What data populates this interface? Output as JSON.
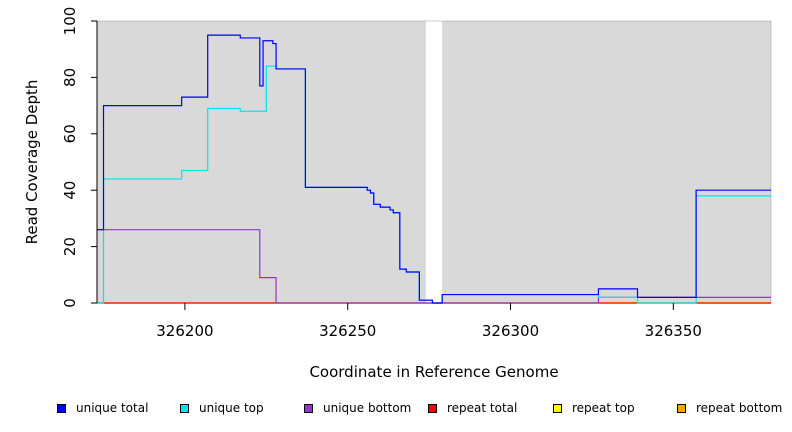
{
  "chart_data": {
    "type": "line",
    "step": true,
    "xlabel": "Coordinate in Reference Genome",
    "ylabel": "Read Coverage Depth",
    "xlim": [
      326173,
      326380
    ],
    "ylim": [
      0,
      100
    ],
    "xticks": [
      326200,
      326250,
      326300,
      326350
    ],
    "yticks": [
      0,
      20,
      40,
      60,
      80,
      100
    ],
    "grid": false,
    "background_color": "#d9d9d9",
    "gap_region": [
      326274,
      326279
    ],
    "legend_position": "bottom",
    "series": [
      {
        "name": "unique total",
        "color": "#0000ff",
        "x": [
          326173,
          326174,
          326175,
          326199,
          326207,
          326217,
          326223,
          326224,
          326227,
          326228,
          326237,
          326256,
          326257,
          326258,
          326259,
          326260,
          326263,
          326264,
          326265,
          326266,
          326267,
          326268,
          326270,
          326272,
          326274,
          326276,
          326279,
          326280,
          326327,
          326339,
          326356,
          326357,
          326380
        ],
        "y": [
          26,
          26,
          70,
          73,
          95,
          94,
          77,
          93,
          92,
          83,
          41,
          40,
          39,
          35,
          35,
          34,
          33,
          32,
          32,
          12,
          12,
          11,
          11,
          1,
          1,
          0,
          3,
          3,
          5,
          2,
          2,
          40,
          40
        ]
      },
      {
        "name": "unique top",
        "color": "#00e5ee",
        "x": [
          326173,
          326174,
          326175,
          326199,
          326207,
          326217,
          326223,
          326225,
          326228,
          326237,
          326256,
          326257,
          326258,
          326259,
          326260,
          326263,
          326264,
          326265,
          326266,
          326267,
          326268,
          326270,
          326272,
          326274,
          326276,
          326279,
          326280,
          326327,
          326339,
          326356,
          326357,
          326380
        ],
        "y": [
          0,
          0,
          44,
          47,
          69,
          68,
          68,
          84,
          83,
          41,
          40,
          39,
          35,
          35,
          34,
          33,
          32,
          32,
          12,
          12,
          11,
          11,
          1,
          1,
          0,
          3,
          3,
          2,
          0,
          0,
          38,
          38
        ]
      },
      {
        "name": "unique bottom",
        "color": "#9932cc",
        "x": [
          326173,
          326223,
          326228,
          326327,
          326380
        ],
        "y": [
          26,
          9,
          0,
          2,
          2
        ]
      },
      {
        "name": "repeat total",
        "color": "#ff0000",
        "x": [
          326173,
          326380
        ],
        "y": [
          0,
          0
        ]
      },
      {
        "name": "repeat top",
        "color": "#ffff00",
        "x": [
          326173,
          326380
        ],
        "y": [
          0,
          0
        ]
      },
      {
        "name": "repeat bottom",
        "color": "#ffa500",
        "x": [
          326173,
          326380
        ],
        "y": [
          0,
          0
        ]
      }
    ]
  }
}
